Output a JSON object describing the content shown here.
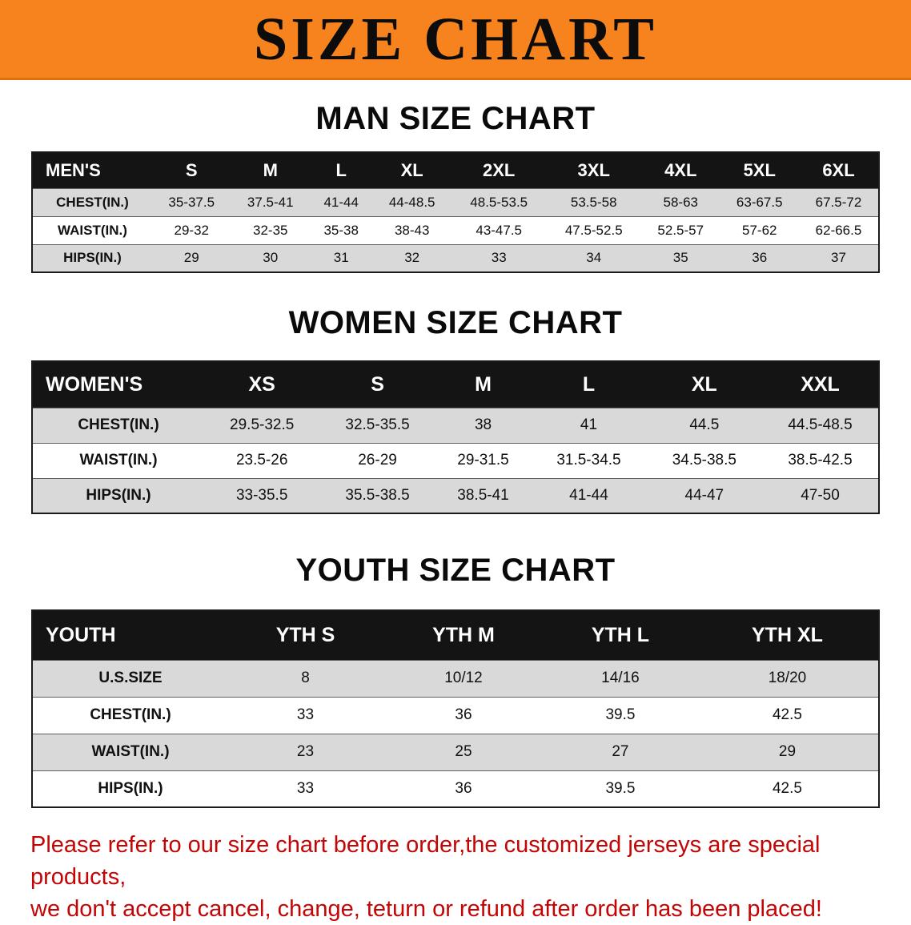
{
  "banner": {
    "title": "SIZE CHART",
    "bg_color": "#f6831d"
  },
  "sections": [
    {
      "heading": "MAN SIZE CHART",
      "table": {
        "header": [
          "MEN'S",
          "S",
          "M",
          "L",
          "XL",
          "2XL",
          "3XL",
          "4XL",
          "5XL",
          "6XL"
        ],
        "rows": [
          [
            "CHEST(IN.)",
            "35-37.5",
            "37.5-41",
            "41-44",
            "44-48.5",
            "48.5-53.5",
            "53.5-58",
            "58-63",
            "63-67.5",
            "67.5-72"
          ],
          [
            "WAIST(IN.)",
            "29-32",
            "32-35",
            "35-38",
            "38-43",
            "43-47.5",
            "47.5-52.5",
            "52.5-57",
            "57-62",
            "62-66.5"
          ],
          [
            "HIPS(IN.)",
            "29",
            "30",
            "31",
            "32",
            "33",
            "34",
            "35",
            "36",
            "37"
          ]
        ]
      }
    },
    {
      "heading": "WOMEN SIZE CHART",
      "table": {
        "header": [
          "WOMEN'S",
          "XS",
          "S",
          "M",
          "L",
          "XL",
          "XXL"
        ],
        "rows": [
          [
            "CHEST(IN.)",
            "29.5-32.5",
            "32.5-35.5",
            "38",
            "41",
            "44.5",
            "44.5-48.5"
          ],
          [
            "WAIST(IN.)",
            "23.5-26",
            "26-29",
            "29-31.5",
            "31.5-34.5",
            "34.5-38.5",
            "38.5-42.5"
          ],
          [
            "HIPS(IN.)",
            "33-35.5",
            "35.5-38.5",
            "38.5-41",
            "41-44",
            "44-47",
            "47-50"
          ]
        ]
      }
    },
    {
      "heading": "YOUTH SIZE CHART",
      "table": {
        "header": [
          "YOUTH",
          "YTH S",
          "YTH M",
          "YTH L",
          "YTH XL"
        ],
        "rows": [
          [
            "U.S.SIZE",
            "8",
            "10/12",
            "14/16",
            "18/20"
          ],
          [
            "CHEST(IN.)",
            "33",
            "36",
            "39.5",
            "42.5"
          ],
          [
            "WAIST(IN.)",
            "23",
            "25",
            "27",
            "29"
          ],
          [
            "HIPS(IN.)",
            "33",
            "36",
            "39.5",
            "42.5"
          ]
        ]
      }
    }
  ],
  "footer": {
    "line1": "Please refer to our size chart before order,the customized jerseys are special products,",
    "line2": "we don't accept cancel, change, teturn or refund after order has been placed!",
    "color": "#c40505"
  }
}
